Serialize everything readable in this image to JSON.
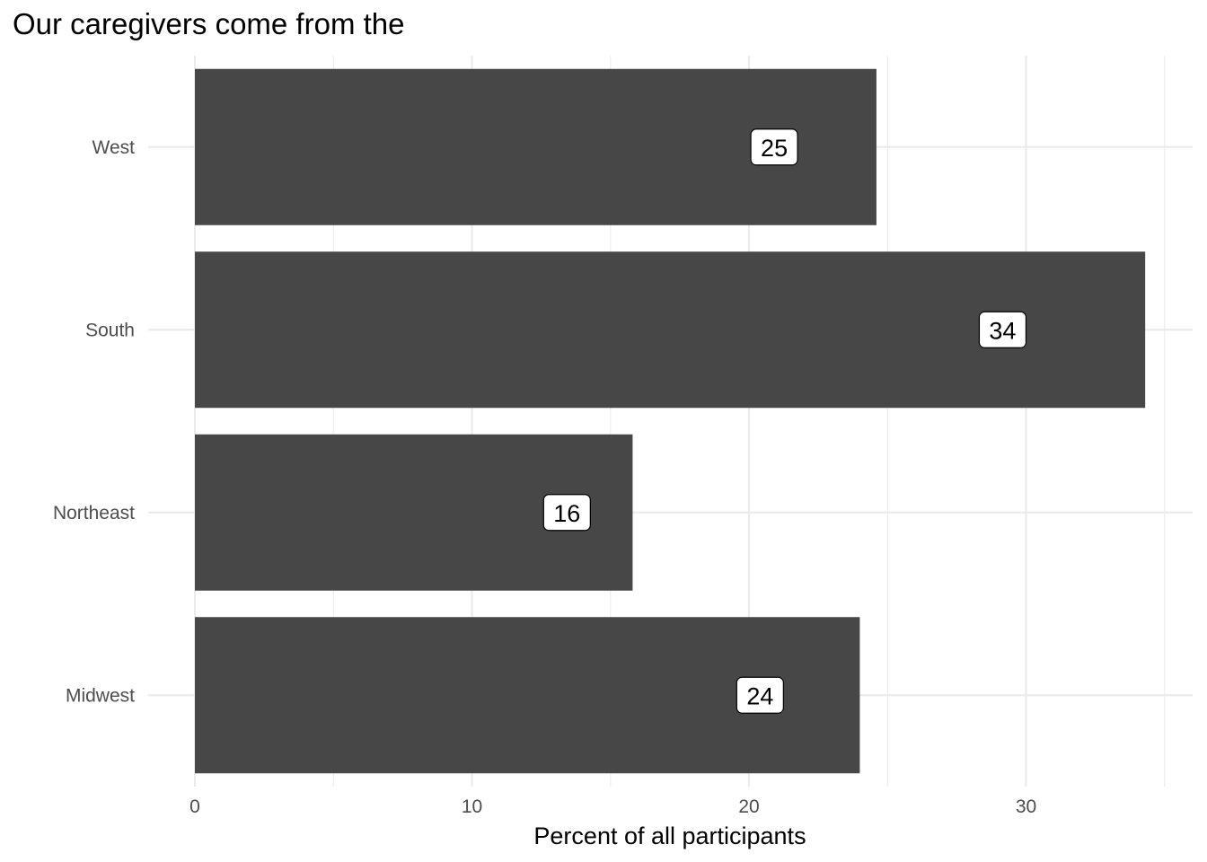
{
  "chart_data": {
    "type": "bar",
    "orientation": "horizontal",
    "title": "Our caregivers come from the",
    "xlabel": "Percent of all participants",
    "ylabel": "",
    "categories": [
      "West",
      "South",
      "Northeast",
      "Midwest"
    ],
    "values": [
      24.6,
      34.3,
      15.8,
      24.0
    ],
    "data_labels": [
      "25",
      "34",
      "16",
      "24"
    ],
    "x_ticks": [
      0,
      10,
      20,
      30
    ],
    "x_tick_labels": [
      "0",
      "10",
      "20",
      "30"
    ],
    "xlim": [
      0,
      36
    ],
    "grid": true,
    "legend": "none",
    "bar_color": "#474747",
    "grid_color": "#ebebeb"
  }
}
